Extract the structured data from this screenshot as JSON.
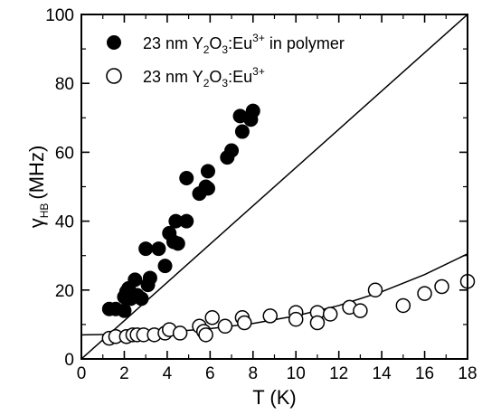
{
  "chart_data": {
    "type": "scatter",
    "xlabel": "T (K)",
    "ylabel": {
      "symbol": "γ",
      "subscript": "HB",
      "unit": "(MHz)"
    },
    "xlim": [
      0,
      18
    ],
    "ylim": [
      0,
      100
    ],
    "xticks": [
      0,
      2,
      4,
      6,
      8,
      10,
      12,
      14,
      16,
      18
    ],
    "yticks": [
      0,
      20,
      40,
      60,
      80,
      100
    ],
    "grid": false,
    "legend_position": "top-left",
    "series": [
      {
        "name": "23 nm Y2O3:Eu3+ in polymer",
        "label_parts": {
          "a": "23 nm Y",
          "b": "2",
          "c": "O",
          "d": "3",
          "e": ":Eu",
          "f": "3+",
          "g": " in polymer"
        },
        "marker": "filled-circle",
        "points": [
          [
            1.3,
            14.5
          ],
          [
            1.6,
            14.5
          ],
          [
            2.0,
            14
          ],
          [
            2.0,
            18
          ],
          [
            2.1,
            19.5
          ],
          [
            2.2,
            20.5
          ],
          [
            2.3,
            17.5
          ],
          [
            2.5,
            23
          ],
          [
            2.6,
            18.5
          ],
          [
            2.8,
            17.5
          ],
          [
            3.0,
            32
          ],
          [
            3.1,
            21.5
          ],
          [
            3.2,
            23.5
          ],
          [
            3.6,
            32
          ],
          [
            3.9,
            27
          ],
          [
            4.1,
            36.5
          ],
          [
            4.3,
            34
          ],
          [
            4.4,
            40
          ],
          [
            4.5,
            33.5
          ],
          [
            4.9,
            40
          ],
          [
            4.9,
            52.5
          ],
          [
            5.5,
            48
          ],
          [
            5.8,
            50
          ],
          [
            5.9,
            54.5
          ],
          [
            5.9,
            49.5
          ],
          [
            6.8,
            58.5
          ],
          [
            7.0,
            60.5
          ],
          [
            7.4,
            70.5
          ],
          [
            7.5,
            66
          ],
          [
            7.9,
            69.5
          ],
          [
            8.0,
            72
          ]
        ],
        "fit": {
          "type": "linear",
          "x": [
            0,
            18
          ],
          "y": [
            0,
            100
          ]
        }
      },
      {
        "name": "23 nm Y2O3:Eu3+",
        "label_parts": {
          "a": "23 nm Y",
          "b": "2",
          "c": "O",
          "d": "3",
          "e": ":Eu",
          "f": "3+",
          "g": ""
        },
        "marker": "open-circle",
        "points": [
          [
            1.3,
            6
          ],
          [
            1.6,
            6.5
          ],
          [
            2.1,
            6.5
          ],
          [
            2.4,
            7
          ],
          [
            2.6,
            7
          ],
          [
            2.9,
            7
          ],
          [
            3.4,
            7
          ],
          [
            3.9,
            7.5
          ],
          [
            4.1,
            8.5
          ],
          [
            4.6,
            7.5
          ],
          [
            5.5,
            9.5
          ],
          [
            5.7,
            8
          ],
          [
            5.8,
            7
          ],
          [
            6.1,
            12
          ],
          [
            6.7,
            9.5
          ],
          [
            7.5,
            12
          ],
          [
            7.6,
            10.5
          ],
          [
            8.8,
            12.5
          ],
          [
            10.0,
            13.5
          ],
          [
            10.0,
            11.5
          ],
          [
            11.0,
            13.5
          ],
          [
            11.0,
            10.5
          ],
          [
            11.6,
            13
          ],
          [
            12.5,
            15
          ],
          [
            13.0,
            14
          ],
          [
            13.7,
            20
          ],
          [
            15.0,
            15.5
          ],
          [
            16.0,
            19
          ],
          [
            16.8,
            21
          ],
          [
            18.0,
            22.5
          ]
        ],
        "fit": {
          "type": "curve",
          "x": [
            0,
            2,
            4,
            6,
            8,
            10,
            12,
            14,
            16,
            18
          ],
          "y": [
            7,
            7.2,
            7.8,
            8.8,
            10.3,
            12.5,
            15.5,
            19.5,
            24.5,
            30.5
          ]
        }
      }
    ]
  }
}
